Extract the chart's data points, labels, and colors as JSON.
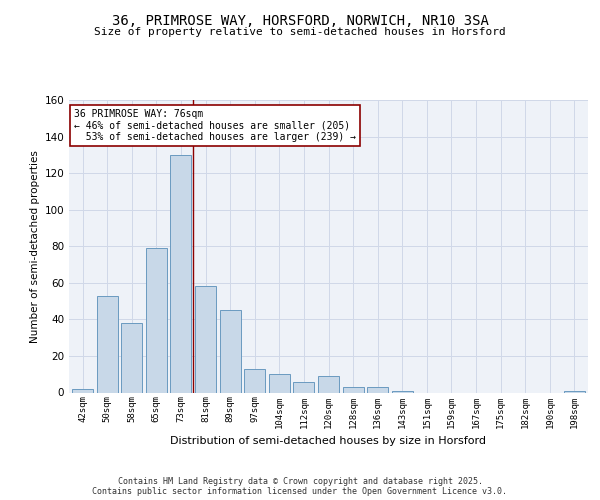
{
  "title1": "36, PRIMROSE WAY, HORSFORD, NORWICH, NR10 3SA",
  "title2": "Size of property relative to semi-detached houses in Horsford",
  "xlabel": "Distribution of semi-detached houses by size in Horsford",
  "ylabel": "Number of semi-detached properties",
  "categories": [
    "42sqm",
    "50sqm",
    "58sqm",
    "65sqm",
    "73sqm",
    "81sqm",
    "89sqm",
    "97sqm",
    "104sqm",
    "112sqm",
    "120sqm",
    "128sqm",
    "136sqm",
    "143sqm",
    "151sqm",
    "159sqm",
    "167sqm",
    "175sqm",
    "182sqm",
    "190sqm",
    "198sqm"
  ],
  "values": [
    2,
    53,
    38,
    79,
    130,
    58,
    45,
    13,
    10,
    6,
    9,
    3,
    3,
    1,
    0,
    0,
    0,
    0,
    0,
    0,
    1
  ],
  "bar_color": "#c8d8e8",
  "bar_edge_color": "#6a9ac0",
  "bar_linewidth": 0.7,
  "smaller_pct": 46,
  "smaller_count": 205,
  "larger_pct": 53,
  "larger_count": 239,
  "vline_color": "#8b0000",
  "vline_x_index": 4.5,
  "ylim": [
    0,
    160
  ],
  "yticks": [
    0,
    20,
    40,
    60,
    80,
    100,
    120,
    140,
    160
  ],
  "grid_color": "#d0d8e8",
  "background_color": "#eef2f8",
  "footer": "Contains HM Land Registry data © Crown copyright and database right 2025.\nContains public sector information licensed under the Open Government Licence v3.0."
}
